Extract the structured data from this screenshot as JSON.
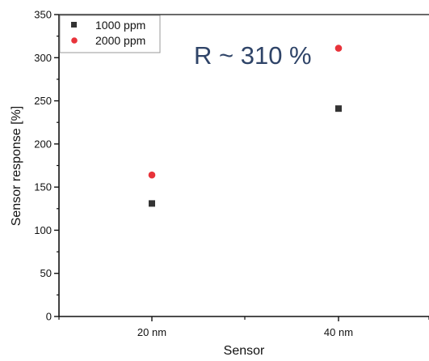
{
  "chart_data": {
    "type": "scatter",
    "categories": [
      "20 nm",
      "40 nm"
    ],
    "xlabel": "Sensor",
    "ylabel": "Sensor response [%]",
    "ylim": [
      0,
      350
    ],
    "yticks": [
      0,
      50,
      100,
      150,
      200,
      250,
      300,
      350
    ],
    "grid": false,
    "legend_position": "top-left",
    "series": [
      {
        "name": "1000 ppm",
        "marker": "square",
        "color": "#333333",
        "values": [
          131,
          241
        ]
      },
      {
        "name": "2000 ppm",
        "marker": "circle",
        "color": "#e8333a",
        "values": [
          164,
          311
        ]
      }
    ],
    "annotations": [
      {
        "text": "R ~ 310 %"
      }
    ]
  }
}
